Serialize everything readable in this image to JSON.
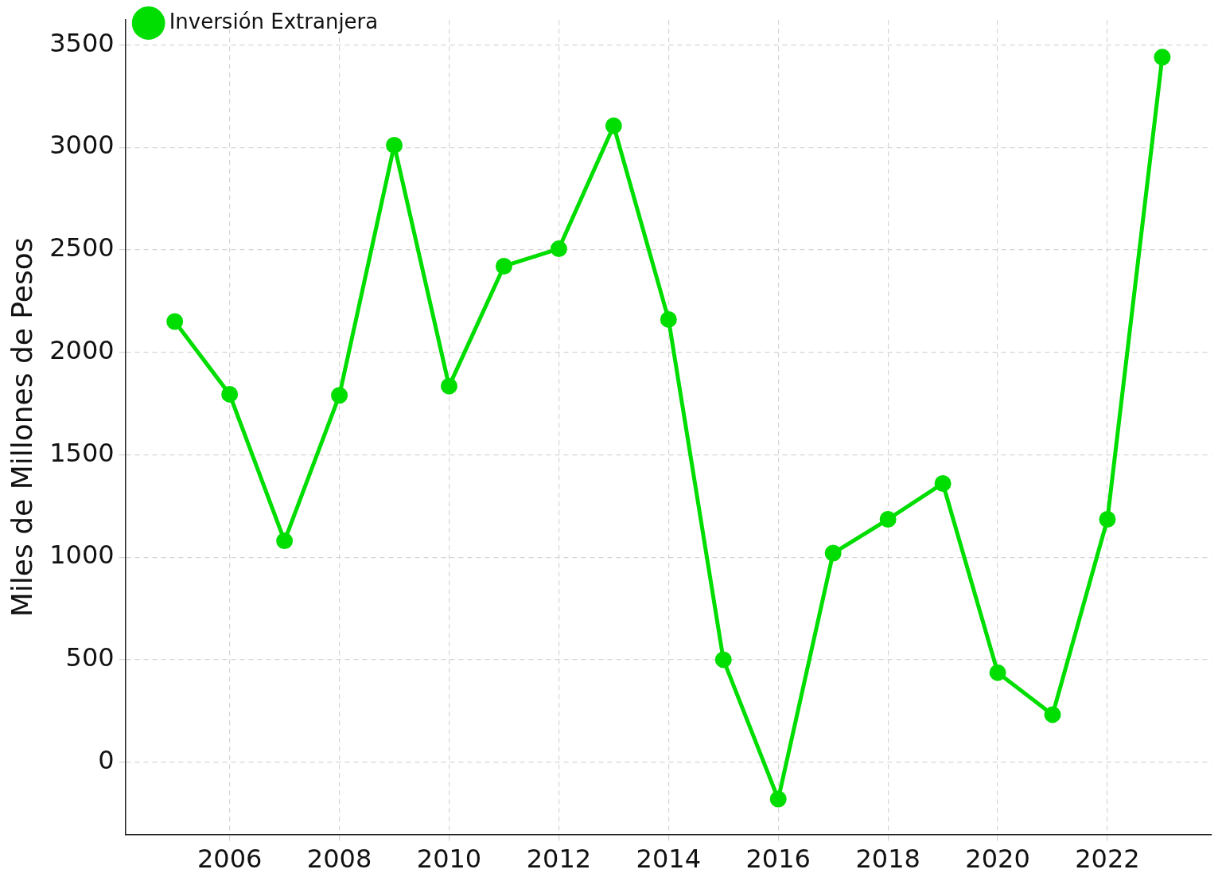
{
  "chart_data": {
    "type": "line",
    "ylabel": "Miles de Millones de Pesos",
    "x": [
      2005,
      2006,
      2007,
      2008,
      2009,
      2010,
      2011,
      2012,
      2013,
      2014,
      2015,
      2016,
      2017,
      2018,
      2019,
      2020,
      2021,
      2022,
      2023
    ],
    "series": [
      {
        "name": "Inversión Extranjera",
        "color": "#00dd00",
        "values": [
          2150,
          1795,
          1080,
          1790,
          3010,
          1835,
          2420,
          2505,
          3105,
          2160,
          500,
          -180,
          1020,
          1185,
          1360,
          437,
          232,
          1185,
          3440
        ]
      }
    ],
    "xlim": [
      2004.1,
      2023.9
    ],
    "xticks": [
      2006,
      2008,
      2010,
      2012,
      2014,
      2016,
      2018,
      2020,
      2022
    ],
    "ylim": [
      -353,
      3621
    ],
    "yticks": [
      0,
      500,
      1000,
      1500,
      2000,
      2500,
      3000,
      3500
    ],
    "grid": true,
    "legend": "top left",
    "marker": "circle",
    "line_style": "solid"
  }
}
